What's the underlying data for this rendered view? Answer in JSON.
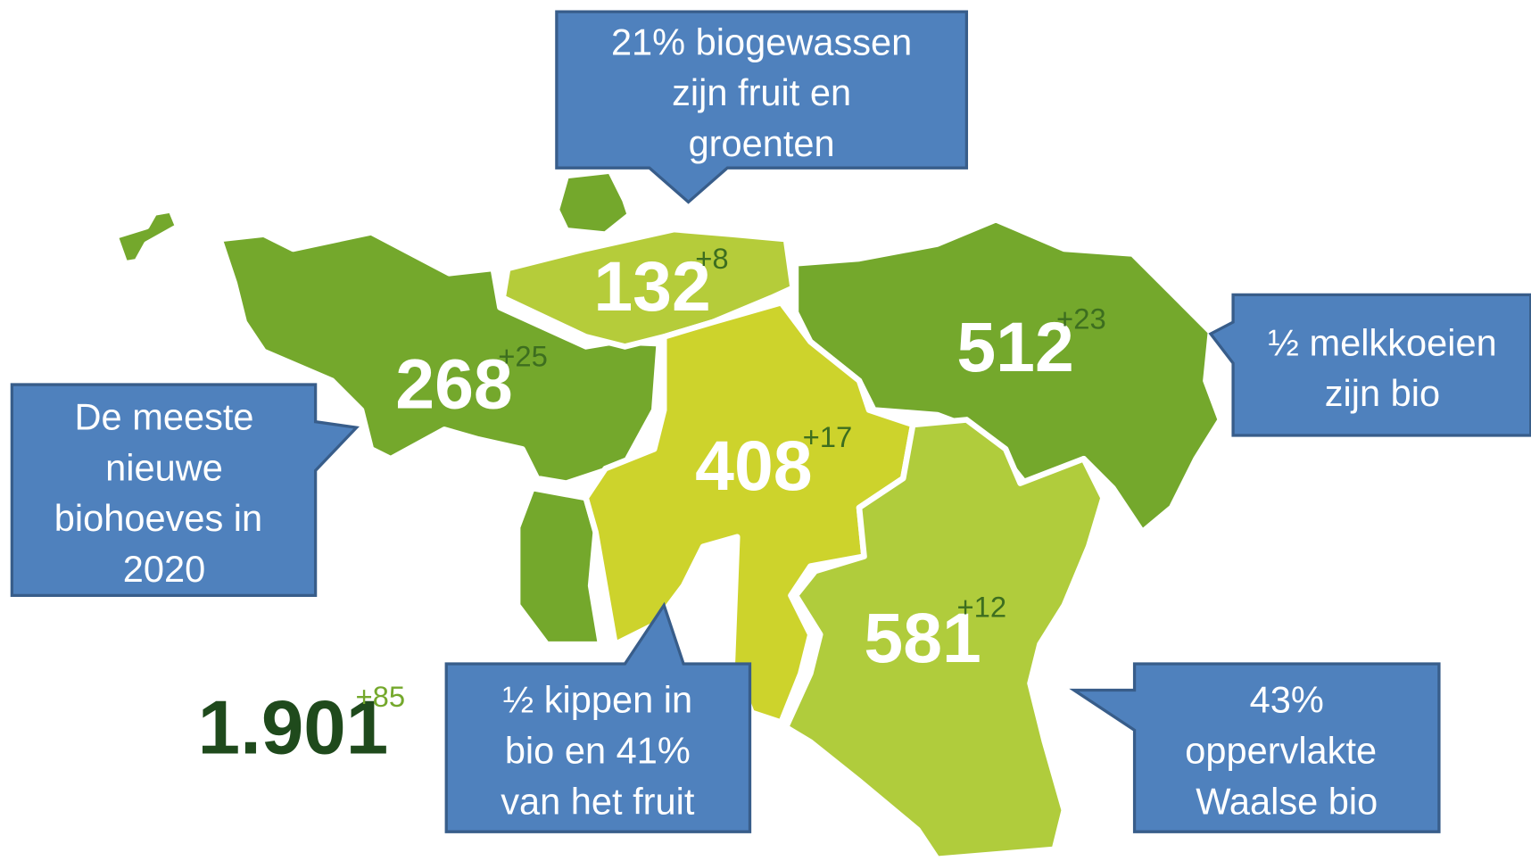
{
  "regions": [
    {
      "count": "268",
      "change": "+25"
    },
    {
      "count": "132",
      "change": "+8"
    },
    {
      "count": "512",
      "change": "+23"
    },
    {
      "count": "408",
      "change": "+17"
    },
    {
      "count": "581",
      "change": "+12"
    }
  ],
  "total": {
    "count": "1.901",
    "change": "+85"
  },
  "callouts": [
    {
      "lines": [
        "21% biogewassen",
        "zijn fruit en",
        "groenten"
      ]
    },
    {
      "lines": [
        "½ melkkoeien",
        "zijn bio"
      ]
    },
    {
      "lines": [
        "De meeste",
        "nieuwe",
        "biohoeves in",
        "2020"
      ]
    },
    {
      "lines": [
        "½ kippen in",
        "bio en 41%",
        "van het fruit"
      ]
    },
    {
      "lines": [
        "43%",
        "oppervlakte",
        "Waalse bio"
      ]
    }
  ]
}
